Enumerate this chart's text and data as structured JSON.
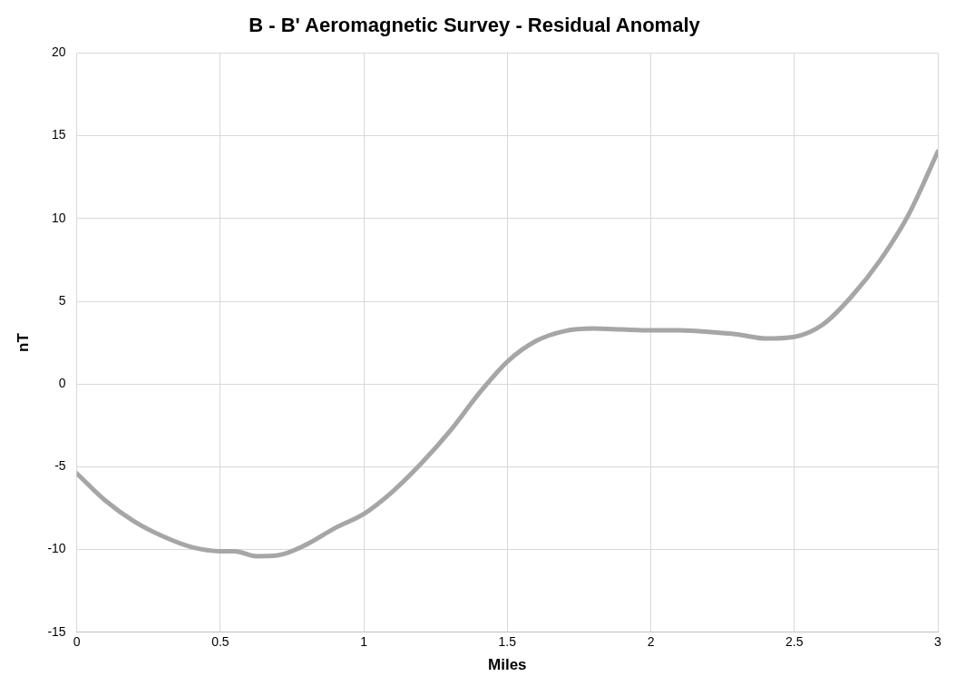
{
  "chart_data": {
    "type": "line",
    "title": "B - B' Aeromagnetic Survey - Residual Anomaly",
    "xlabel": "Miles",
    "ylabel": "nT",
    "x": [
      0,
      0.1,
      0.2,
      0.3,
      0.4,
      0.5,
      0.55,
      0.625,
      0.7,
      0.8,
      0.9,
      1,
      1.1,
      1.2,
      1.3,
      1.4,
      1.5,
      1.6,
      1.7,
      1.8,
      1.9,
      2,
      2.1,
      2.2,
      2.3,
      2.4,
      2.5,
      2.6,
      2.7,
      2.8,
      2.9,
      3
    ],
    "series": [
      {
        "color": "#a6a6a6",
        "values": [
          -5.4,
          -7.05,
          -8.3,
          -9.2,
          -9.85,
          -10.1,
          -10.1,
          -10.4,
          -10.35,
          -9.7,
          -8.7,
          -7.85,
          -6.5,
          -4.8,
          -2.85,
          -0.6,
          1.35,
          2.6,
          3.2,
          3.35,
          3.3,
          3.25,
          3.25,
          3.15,
          3,
          2.75,
          2.85,
          3.6,
          5.3,
          7.5,
          10.3,
          14.05
        ]
      }
    ],
    "xlim": [
      0,
      3
    ],
    "xticks": [
      0,
      0.5,
      1,
      1.5,
      2,
      2.5,
      3
    ],
    "ylim": [
      -15,
      20
    ],
    "yticks": [
      -15,
      -10,
      -5,
      0,
      5,
      10,
      15,
      20
    ],
    "grid": true,
    "legend": false,
    "marker": "none",
    "line_style": "solid"
  }
}
